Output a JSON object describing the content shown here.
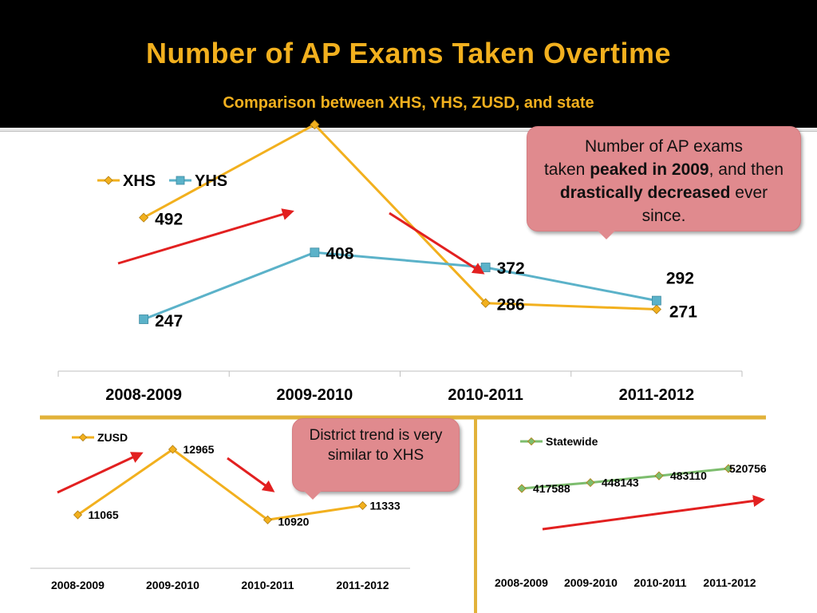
{
  "slide": {
    "title": "Number of AP Exams Taken Overtime",
    "subtitle": "Comparison between XHS, YHS, ZUSD, and state"
  },
  "callouts": {
    "main_line1": "Number of AP exams",
    "main_pre": "taken ",
    "main_bold1": "peaked in 2009",
    "main_mid": ", and then ",
    "main_bold2": "drastically decreased",
    "main_post": " ever since.",
    "district": "District trend is very similar to XHS"
  },
  "colors": {
    "header_bg": "#000000",
    "title": "#f2b01e",
    "xhs_line": "#f2b01e",
    "yhs_line": "#5bb2c9",
    "zusd_line": "#f2b01e",
    "state_line": "#7dbd6e",
    "arrow": "#e22020",
    "callout_fill": "#e08a8e",
    "divider": "#e2b23a"
  },
  "chart_data": [
    {
      "type": "line",
      "categories": [
        "2008-2009",
        "2009-2010",
        "2010-2011",
        "2011-2012"
      ],
      "series": [
        {
          "name": "XHS",
          "values": [
            492,
            716,
            286,
            271
          ]
        },
        {
          "name": "YHS",
          "values": [
            247,
            408,
            372,
            292
          ]
        }
      ],
      "legend": "top-left",
      "grid": false
    },
    {
      "type": "line",
      "categories": [
        "2008-2009",
        "2009-2010",
        "2010-2011",
        "2011-2012"
      ],
      "series": [
        {
          "name": "ZUSD",
          "values": [
            11065,
            12965,
            10920,
            11333
          ]
        }
      ],
      "legend": "top-left",
      "grid": false
    },
    {
      "type": "line",
      "categories": [
        "2008-2009",
        "2009-2010",
        "2010-2011",
        "2011-2012"
      ],
      "series": [
        {
          "name": "Statewide",
          "values": [
            417588,
            448143,
            483110,
            520756
          ]
        }
      ],
      "legend": "top-left",
      "grid": false
    }
  ]
}
